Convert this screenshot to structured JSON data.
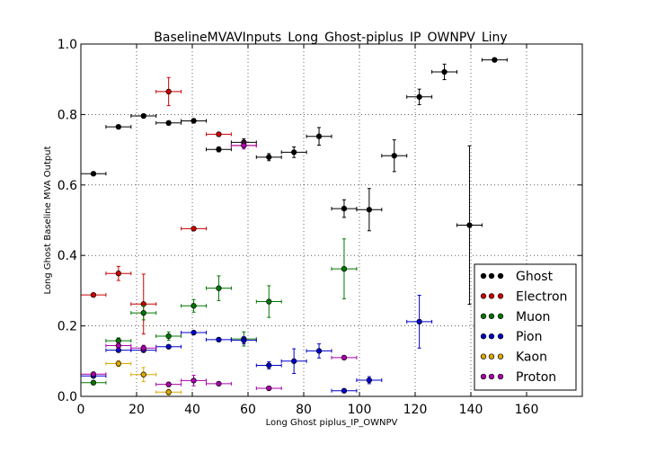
{
  "chart_data": {
    "type": "scatter",
    "title": "BaselineMVAVInputs_Long_Ghost-piplus_IP_OWNPV_Liny",
    "xlabel": "Long Ghost piplus_IP_OWNPV",
    "ylabel": "Long Ghost Baseline MVA Output",
    "xlim": [
      0,
      180
    ],
    "ylim": [
      0,
      1.0
    ],
    "x_ticks": [
      "0",
      "20",
      "40",
      "60",
      "80",
      "100",
      "120",
      "140",
      "160"
    ],
    "x_tick_values": [
      0,
      20,
      40,
      60,
      80,
      100,
      120,
      140,
      160
    ],
    "y_ticks": [
      "0.0",
      "0.2",
      "0.4",
      "0.6",
      "0.8",
      "1.0"
    ],
    "y_tick_values": [
      0,
      0.2,
      0.4,
      0.6,
      0.8,
      1.0
    ],
    "grid": true,
    "legend_position": "bottom-right",
    "bin_half_width": 4.5,
    "series": [
      {
        "name": "Ghost",
        "color": "#000000",
        "points": [
          [
            4.5,
            0.632,
            0.003
          ],
          [
            13.5,
            0.765,
            0.005
          ],
          [
            22.5,
            0.796,
            0.005
          ],
          [
            31.5,
            0.776,
            0.006
          ],
          [
            40.5,
            0.782,
            0.006
          ],
          [
            49.5,
            0.701,
            0.007
          ],
          [
            58.5,
            0.721,
            0.01
          ],
          [
            67.5,
            0.679,
            0.01
          ],
          [
            76.5,
            0.693,
            0.015
          ],
          [
            85.5,
            0.738,
            0.025
          ],
          [
            94.5,
            0.533,
            0.025
          ],
          [
            103.5,
            0.53,
            0.06
          ],
          [
            112.5,
            0.683,
            0.045
          ],
          [
            121.5,
            0.85,
            0.022
          ],
          [
            130.5,
            0.921,
            0.022
          ],
          [
            139.5,
            0.486,
            0.225
          ],
          [
            148.5,
            0.955,
            0.005
          ]
        ]
      },
      {
        "name": "Electron",
        "color": "#cc0000",
        "points": [
          [
            4.5,
            0.288,
            0.004
          ],
          [
            13.5,
            0.349,
            0.02
          ],
          [
            22.5,
            0.262,
            0.085
          ],
          [
            31.5,
            0.865,
            0.04
          ],
          [
            40.5,
            0.476,
            0.005
          ],
          [
            49.5,
            0.744,
            0.005
          ],
          [
            58.5,
            0.712,
            0.005
          ]
        ]
      },
      {
        "name": "Muon",
        "color": "#007700",
        "points": [
          [
            4.5,
            0.039,
            0.005
          ],
          [
            13.5,
            0.158,
            0.008
          ],
          [
            22.5,
            0.237,
            0.02
          ],
          [
            31.5,
            0.171,
            0.012
          ],
          [
            40.5,
            0.257,
            0.018
          ],
          [
            49.5,
            0.307,
            0.035
          ],
          [
            58.5,
            0.163,
            0.02
          ],
          [
            67.5,
            0.269,
            0.045
          ],
          [
            94.5,
            0.362,
            0.085
          ]
        ]
      },
      {
        "name": "Pion",
        "color": "#0000cc",
        "points": [
          [
            4.5,
            0.058,
            0.003
          ],
          [
            13.5,
            0.131,
            0.003
          ],
          [
            22.5,
            0.131,
            0.004
          ],
          [
            31.5,
            0.141,
            0.004
          ],
          [
            40.5,
            0.181,
            0.004
          ],
          [
            49.5,
            0.161,
            0.005
          ],
          [
            58.5,
            0.159,
            0.01
          ],
          [
            67.5,
            0.088,
            0.01
          ],
          [
            76.5,
            0.1,
            0.035
          ],
          [
            85.5,
            0.129,
            0.02
          ],
          [
            94.5,
            0.016,
            0.003
          ],
          [
            103.5,
            0.046,
            0.01
          ],
          [
            121.5,
            0.212,
            0.075
          ]
        ]
      },
      {
        "name": "Kaon",
        "color": "#ddaa00",
        "points": [
          [
            13.5,
            0.093,
            0.008
          ],
          [
            22.5,
            0.062,
            0.02
          ],
          [
            31.5,
            0.012,
            0.008
          ]
        ]
      },
      {
        "name": "Proton",
        "color": "#aa00aa",
        "points": [
          [
            4.5,
            0.063,
            0.005
          ],
          [
            13.5,
            0.144,
            0.008
          ],
          [
            22.5,
            0.137,
            0.008
          ],
          [
            31.5,
            0.034,
            0.006
          ],
          [
            40.5,
            0.045,
            0.015
          ],
          [
            49.5,
            0.036,
            0.004
          ],
          [
            58.5,
            0.712,
            0.01
          ],
          [
            67.5,
            0.023,
            0.003
          ],
          [
            94.5,
            0.11,
            0.004
          ]
        ]
      }
    ]
  }
}
